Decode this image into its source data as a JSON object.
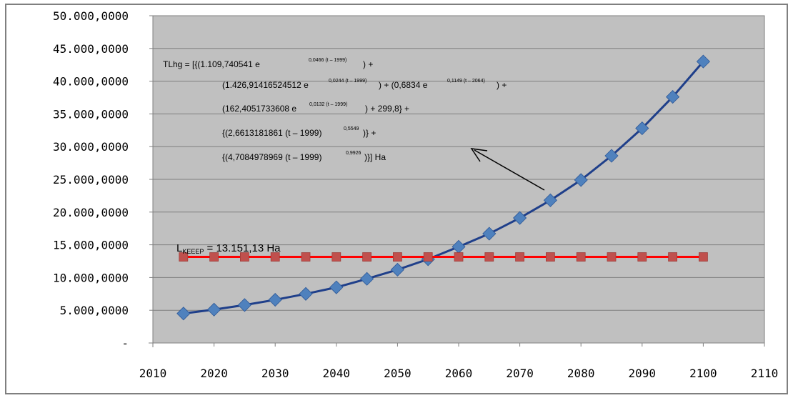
{
  "chart_data": {
    "type": "line",
    "title": "",
    "xlabel": "",
    "ylabel": "",
    "xlim": [
      2010,
      2110
    ],
    "ylim": [
      0,
      50000000
    ],
    "grid": true,
    "legend": "none",
    "x_ticks": [
      "2010",
      "2020",
      "2030",
      "2040",
      "2050",
      "2060",
      "2070",
      "2080",
      "2090",
      "2100",
      "2110"
    ],
    "y_ticks": [
      "-",
      "5.000,0000",
      "10.000,0000",
      "15.000,0000",
      "20.000,0000",
      "25.000,0000",
      "30.000,0000",
      "35.000,0000",
      "40.000,0000",
      "45.000,0000",
      "50.000,0000"
    ],
    "series": [
      {
        "color": "#1f3f8a",
        "marker_color": "#4f81bd",
        "marker": "diamond",
        "x": [
          2015,
          2020,
          2025,
          2030,
          2035,
          2040,
          2045,
          2050,
          2055,
          2060,
          2065,
          2070,
          2075,
          2080,
          2085,
          2090,
          2095,
          2100
        ],
        "y": [
          4500000,
          5100000,
          5800000,
          6600000,
          7500000,
          8500000,
          9800000,
          11200000,
          12800000,
          14700000,
          16700000,
          19100000,
          21800000,
          24900000,
          28600000,
          32800000,
          37600000,
          43000000
        ]
      },
      {
        "color": "#ff0000",
        "marker_color": "#c0504d",
        "marker": "square",
        "x": [
          2015,
          2020,
          2025,
          2030,
          2035,
          2040,
          2045,
          2050,
          2055,
          2060,
          2065,
          2070,
          2075,
          2080,
          2085,
          2090,
          2095,
          2100
        ],
        "y": [
          13151130,
          13151130,
          13151130,
          13151130,
          13151130,
          13151130,
          13151130,
          13151130,
          13151130,
          13151130,
          13151130,
          13151130,
          13151130,
          13151130,
          13151130,
          13151130,
          13151130,
          13151130
        ]
      }
    ],
    "annotations": {
      "equation_lines": [
        "TLhg    = [{(1.109,740541 e",
        ") +",
        "(1.426,91416524512 e",
        ") + (0,6834 e",
        ") +",
        "(162,4051733608 e",
        ") + 299,8} +",
        "{(2,6613181861 (t – 1999)",
        ")} +",
        "{(4,7084978969 (t – 1999)",
        ")}] Ha"
      ],
      "equation_exponents": [
        "0,0466 (t – 1999)",
        "0,0244 (t – 1999)",
        "0,1149 (t – 2064)",
        "0,0132 (t – 1999)",
        "0,5549",
        "0,9926"
      ],
      "threshold_label_prefix": "L",
      "threshold_label_sub": "KEEEP",
      "threshold_label_value": " = 13.151,13 Ha"
    }
  }
}
